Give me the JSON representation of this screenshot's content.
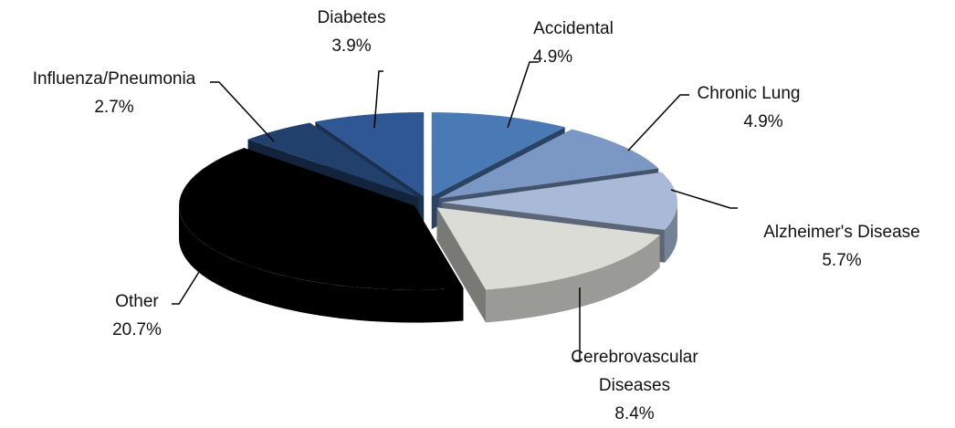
{
  "chart_data": {
    "type": "pie",
    "categories": [
      "Accidental",
      "Chronic Lung",
      "Alzheimer's Disease",
      "Cerebrovascular Diseases",
      "Other",
      "Influenza/Pneumonia",
      "Diabetes"
    ],
    "values": [
      4.9,
      4.9,
      5.7,
      8.4,
      20.7,
      2.7,
      3.9
    ],
    "value_labels": [
      "4.9%",
      "4.9%",
      "5.7%",
      "8.4%",
      "20.7%",
      "2.7%",
      "3.9%"
    ],
    "colors": [
      "#4a7ab6",
      "#7b97c4",
      "#a9bad9",
      "#dcdcd6",
      "#000000",
      "#22406c",
      "#2e5793"
    ]
  }
}
